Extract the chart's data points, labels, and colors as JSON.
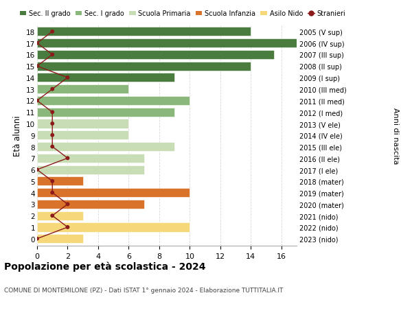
{
  "ages": [
    18,
    17,
    16,
    15,
    14,
    13,
    12,
    11,
    10,
    9,
    8,
    7,
    6,
    5,
    4,
    3,
    2,
    1,
    0
  ],
  "right_labels": [
    "2005 (V sup)",
    "2006 (IV sup)",
    "2007 (III sup)",
    "2008 (II sup)",
    "2009 (I sup)",
    "2010 (III med)",
    "2011 (II med)",
    "2012 (I med)",
    "2013 (V ele)",
    "2014 (IV ele)",
    "2015 (III ele)",
    "2016 (II ele)",
    "2017 (I ele)",
    "2018 (mater)",
    "2019 (mater)",
    "2020 (mater)",
    "2021 (nido)",
    "2022 (nido)",
    "2023 (nido)"
  ],
  "bar_values": [
    14,
    17,
    15.5,
    14,
    9,
    6,
    10,
    9,
    6,
    6,
    9,
    7,
    7,
    3,
    10,
    7,
    3,
    10,
    3
  ],
  "bar_colors": [
    "#4a7c3f",
    "#4a7c3f",
    "#4a7c3f",
    "#4a7c3f",
    "#4a7c3f",
    "#8ab87a",
    "#8ab87a",
    "#8ab87a",
    "#c8ddb5",
    "#c8ddb5",
    "#c8ddb5",
    "#c8ddb5",
    "#c8ddb5",
    "#d9722a",
    "#d9722a",
    "#d9722a",
    "#f5d87a",
    "#f5d87a",
    "#f5d87a"
  ],
  "stranieri_values": [
    1,
    0,
    1,
    0,
    2,
    1,
    0,
    1,
    1,
    1,
    1,
    2,
    0,
    1,
    1,
    2,
    1,
    2,
    0
  ],
  "title": "Popolazione per età scolastica - 2024",
  "subtitle": "COMUNE DI MONTEMILONE (PZ) - Dati ISTAT 1° gennaio 2024 - Elaborazione TUTTITALIA.IT",
  "ylabel": "Età alunni",
  "right_ylabel": "Anni di nascita",
  "xlim": [
    0,
    17
  ],
  "xticks": [
    0,
    2,
    4,
    6,
    8,
    10,
    12,
    14,
    16
  ],
  "legend_labels": [
    "Sec. II grado",
    "Sec. I grado",
    "Scuola Primaria",
    "Scuola Infanzia",
    "Asilo Nido",
    "Stranieri"
  ],
  "legend_colors": [
    "#4a7c3f",
    "#8ab87a",
    "#c8ddb5",
    "#d9722a",
    "#f5d87a",
    "#8b1a1a"
  ],
  "bg_color": "#ffffff",
  "grid_color": "#d8d8d8",
  "bar_height": 0.78
}
